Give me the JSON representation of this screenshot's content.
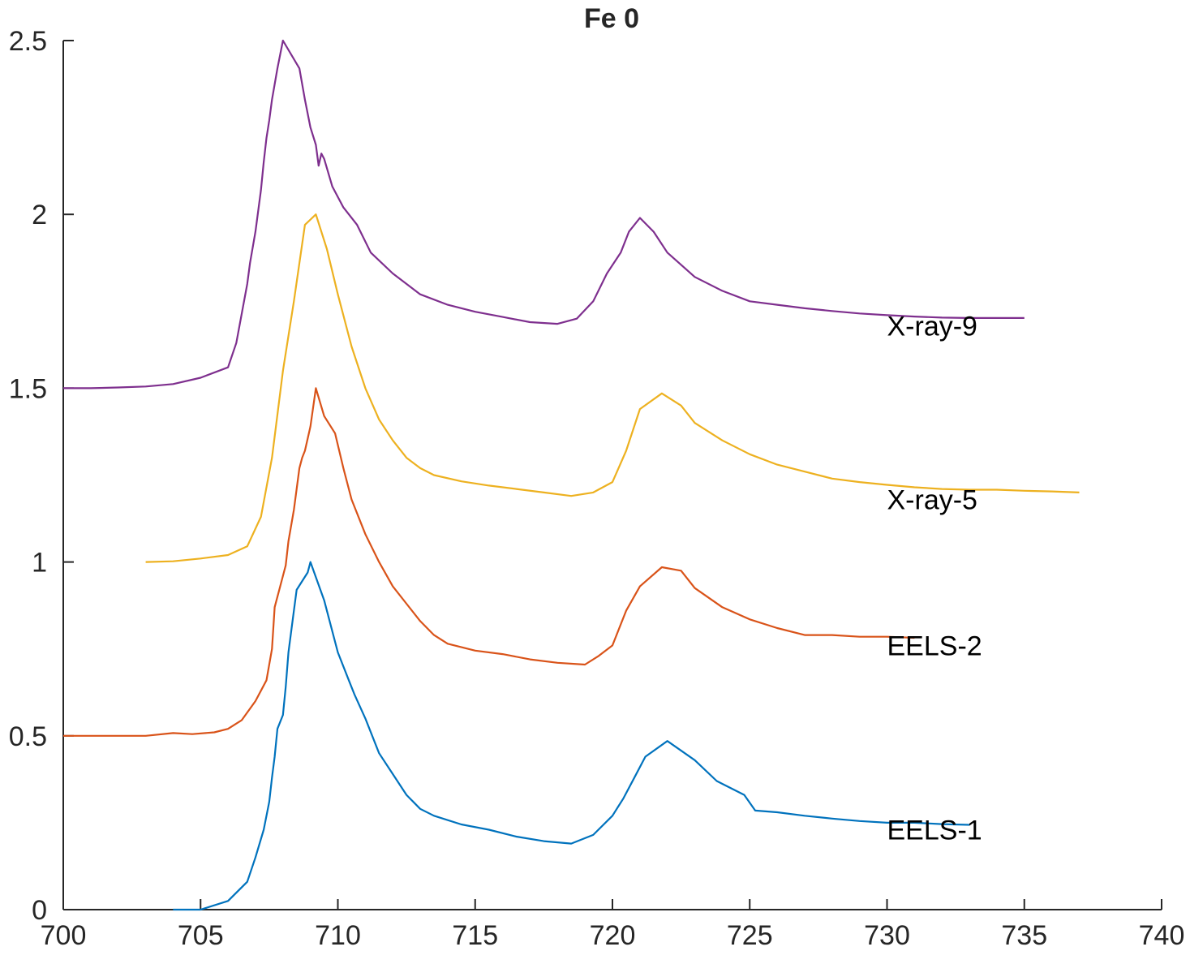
{
  "chart_data": {
    "type": "line",
    "title": "Fe 0",
    "xlabel": "",
    "ylabel": "",
    "xlim": [
      700,
      740
    ],
    "ylim": [
      0,
      2.5
    ],
    "xticks": [
      "700",
      "705",
      "710",
      "715",
      "720",
      "725",
      "730",
      "735",
      "740"
    ],
    "yticks": [
      "0",
      "0.5",
      "1",
      "1.5",
      "2",
      "2.5"
    ],
    "grid": false,
    "legend": "none (series labelled inline at right)",
    "series": [
      {
        "name": "EELS-1",
        "color": "#0072BD",
        "label_at": [
          730.0,
          0.23
        ],
        "points": [
          [
            704.0,
            0.0
          ],
          [
            705.0,
            0.0
          ],
          [
            706.0,
            0.025
          ],
          [
            706.7,
            0.08
          ],
          [
            707.0,
            0.15
          ],
          [
            707.3,
            0.23
          ],
          [
            707.5,
            0.31
          ],
          [
            707.6,
            0.38
          ],
          [
            707.7,
            0.44
          ],
          [
            707.8,
            0.52
          ],
          [
            708.0,
            0.56
          ],
          [
            708.1,
            0.64
          ],
          [
            708.2,
            0.74
          ],
          [
            708.4,
            0.86
          ],
          [
            708.5,
            0.92
          ],
          [
            708.9,
            0.97
          ],
          [
            709.0,
            1.0
          ],
          [
            709.5,
            0.89
          ],
          [
            710.0,
            0.74
          ],
          [
            710.4,
            0.66
          ],
          [
            710.6,
            0.62
          ],
          [
            711.0,
            0.55
          ],
          [
            711.5,
            0.45
          ],
          [
            712.0,
            0.39
          ],
          [
            712.5,
            0.33
          ],
          [
            713.0,
            0.29
          ],
          [
            713.5,
            0.27
          ],
          [
            714.5,
            0.245
          ],
          [
            715.5,
            0.23
          ],
          [
            716.5,
            0.21
          ],
          [
            717.5,
            0.197
          ],
          [
            718.5,
            0.19
          ],
          [
            719.3,
            0.215
          ],
          [
            720.0,
            0.27
          ],
          [
            720.4,
            0.32
          ],
          [
            720.8,
            0.38
          ],
          [
            721.2,
            0.44
          ],
          [
            722.0,
            0.485
          ],
          [
            723.0,
            0.43
          ],
          [
            723.8,
            0.37
          ],
          [
            724.8,
            0.33
          ],
          [
            725.2,
            0.285
          ],
          [
            726.0,
            0.28
          ],
          [
            727.0,
            0.27
          ],
          [
            728.0,
            0.262
          ],
          [
            729.0,
            0.255
          ],
          [
            730.0,
            0.25
          ],
          [
            731.0,
            0.25
          ],
          [
            732.0,
            0.246
          ],
          [
            733.0,
            0.244
          ]
        ]
      },
      {
        "name": "EELS-2",
        "color": "#D95319",
        "label_at": [
          730.0,
          0.76
        ],
        "points": [
          [
            700.0,
            0.5
          ],
          [
            701.0,
            0.5
          ],
          [
            702.0,
            0.5
          ],
          [
            703.0,
            0.5
          ],
          [
            704.0,
            0.508
          ],
          [
            704.7,
            0.505
          ],
          [
            705.5,
            0.51
          ],
          [
            706.0,
            0.52
          ],
          [
            706.5,
            0.545
          ],
          [
            707.0,
            0.6
          ],
          [
            707.4,
            0.66
          ],
          [
            707.6,
            0.75
          ],
          [
            707.7,
            0.87
          ],
          [
            707.9,
            0.93
          ],
          [
            708.1,
            0.99
          ],
          [
            708.2,
            1.06
          ],
          [
            708.4,
            1.15
          ],
          [
            708.6,
            1.27
          ],
          [
            708.7,
            1.3
          ],
          [
            708.8,
            1.32
          ],
          [
            709.0,
            1.39
          ],
          [
            709.2,
            1.5
          ],
          [
            709.5,
            1.42
          ],
          [
            709.9,
            1.37
          ],
          [
            710.2,
            1.27
          ],
          [
            710.5,
            1.18
          ],
          [
            711.0,
            1.08
          ],
          [
            711.5,
            1.0
          ],
          [
            712.0,
            0.93
          ],
          [
            712.5,
            0.88
          ],
          [
            713.0,
            0.83
          ],
          [
            713.5,
            0.79
          ],
          [
            714.0,
            0.765
          ],
          [
            715.0,
            0.745
          ],
          [
            716.0,
            0.735
          ],
          [
            717.0,
            0.72
          ],
          [
            718.0,
            0.71
          ],
          [
            719.0,
            0.705
          ],
          [
            719.5,
            0.73
          ],
          [
            720.0,
            0.76
          ],
          [
            720.5,
            0.86
          ],
          [
            721.0,
            0.93
          ],
          [
            721.8,
            0.985
          ],
          [
            722.5,
            0.975
          ],
          [
            723.0,
            0.925
          ],
          [
            724.0,
            0.87
          ],
          [
            725.0,
            0.835
          ],
          [
            726.0,
            0.81
          ],
          [
            727.0,
            0.79
          ],
          [
            728.0,
            0.79
          ],
          [
            729.0,
            0.785
          ],
          [
            730.0,
            0.785
          ],
          [
            731.0,
            0.782
          ]
        ]
      },
      {
        "name": "X-ray-5",
        "color": "#EDB120",
        "label_at": [
          730.0,
          1.18
        ],
        "points": [
          [
            703.0,
            1.0
          ],
          [
            704.0,
            1.002
          ],
          [
            705.0,
            1.01
          ],
          [
            706.0,
            1.02
          ],
          [
            706.7,
            1.045
          ],
          [
            707.2,
            1.13
          ],
          [
            707.6,
            1.3
          ],
          [
            708.0,
            1.55
          ],
          [
            708.4,
            1.75
          ],
          [
            708.8,
            1.97
          ],
          [
            709.2,
            2.0
          ],
          [
            709.6,
            1.9
          ],
          [
            710.0,
            1.77
          ],
          [
            710.5,
            1.62
          ],
          [
            711.0,
            1.5
          ],
          [
            711.5,
            1.41
          ],
          [
            712.0,
            1.35
          ],
          [
            712.5,
            1.3
          ],
          [
            713.0,
            1.27
          ],
          [
            713.5,
            1.25
          ],
          [
            714.5,
            1.232
          ],
          [
            715.5,
            1.22
          ],
          [
            716.5,
            1.21
          ],
          [
            717.5,
            1.2
          ],
          [
            718.5,
            1.19
          ],
          [
            719.3,
            1.2
          ],
          [
            720.0,
            1.23
          ],
          [
            720.5,
            1.32
          ],
          [
            721.0,
            1.44
          ],
          [
            721.8,
            1.485
          ],
          [
            722.5,
            1.45
          ],
          [
            723.0,
            1.4
          ],
          [
            724.0,
            1.35
          ],
          [
            725.0,
            1.31
          ],
          [
            726.0,
            1.28
          ],
          [
            727.0,
            1.26
          ],
          [
            728.0,
            1.24
          ],
          [
            729.0,
            1.23
          ],
          [
            730.0,
            1.222
          ],
          [
            731.0,
            1.215
          ],
          [
            732.0,
            1.21
          ],
          [
            733.0,
            1.208
          ],
          [
            734.0,
            1.208
          ],
          [
            735.0,
            1.205
          ],
          [
            736.0,
            1.203
          ],
          [
            737.0,
            1.2
          ]
        ]
      },
      {
        "name": "X-ray-9",
        "color": "#7E2F8E",
        "label_at": [
          730.0,
          1.68
        ],
        "points": [
          [
            700.0,
            1.5
          ],
          [
            701.0,
            1.5
          ],
          [
            702.0,
            1.502
          ],
          [
            703.0,
            1.505
          ],
          [
            704.0,
            1.512
          ],
          [
            705.0,
            1.53
          ],
          [
            706.0,
            1.56
          ],
          [
            706.3,
            1.63
          ],
          [
            706.7,
            1.8
          ],
          [
            706.8,
            1.86
          ],
          [
            707.0,
            1.95
          ],
          [
            707.2,
            2.07
          ],
          [
            707.3,
            2.15
          ],
          [
            707.4,
            2.22
          ],
          [
            707.5,
            2.27
          ],
          [
            707.6,
            2.33
          ],
          [
            707.8,
            2.42
          ],
          [
            708.0,
            2.5
          ],
          [
            708.6,
            2.42
          ],
          [
            708.8,
            2.33
          ],
          [
            709.0,
            2.25
          ],
          [
            709.2,
            2.2
          ],
          [
            709.3,
            2.14
          ],
          [
            709.4,
            2.175
          ],
          [
            709.5,
            2.16
          ],
          [
            709.8,
            2.08
          ],
          [
            710.2,
            2.02
          ],
          [
            710.7,
            1.97
          ],
          [
            711.2,
            1.89
          ],
          [
            712.0,
            1.83
          ],
          [
            713.0,
            1.77
          ],
          [
            714.0,
            1.74
          ],
          [
            715.0,
            1.72
          ],
          [
            716.0,
            1.705
          ],
          [
            717.0,
            1.69
          ],
          [
            718.0,
            1.685
          ],
          [
            718.7,
            1.7
          ],
          [
            719.3,
            1.75
          ],
          [
            719.8,
            1.83
          ],
          [
            720.3,
            1.89
          ],
          [
            720.6,
            1.95
          ],
          [
            721.0,
            1.99
          ],
          [
            721.5,
            1.95
          ],
          [
            722.0,
            1.89
          ],
          [
            723.0,
            1.82
          ],
          [
            724.0,
            1.78
          ],
          [
            725.0,
            1.75
          ],
          [
            726.0,
            1.74
          ],
          [
            727.0,
            1.73
          ],
          [
            728.0,
            1.722
          ],
          [
            729.0,
            1.715
          ],
          [
            730.0,
            1.71
          ],
          [
            731.0,
            1.706
          ],
          [
            732.0,
            1.703
          ],
          [
            733.0,
            1.702
          ],
          [
            734.0,
            1.702
          ],
          [
            735.0,
            1.702
          ]
        ]
      }
    ]
  }
}
